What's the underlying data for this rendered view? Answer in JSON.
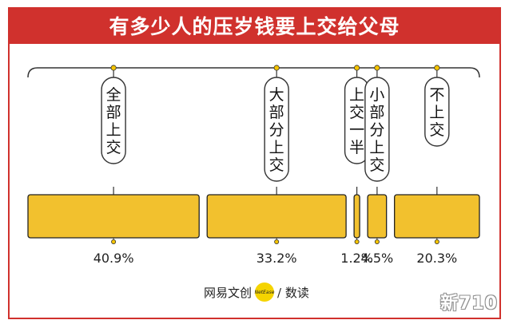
{
  "chart_data": {
    "type": "bar",
    "title": "有多少人的压岁钱要上交给父母",
    "categories": [
      "全部上交",
      "大部分上交",
      "上交一半",
      "小部分上交",
      "不上交"
    ],
    "values": [
      40.9,
      33.2,
      1.2,
      4.5,
      20.3
    ],
    "value_labels": [
      "40.9%",
      "33.2%",
      "1.2%",
      "4.5%",
      "20.3%"
    ],
    "unit": "%",
    "bar_color": "#f2c12e",
    "bar_border_color": "#222222",
    "accent_color": "#d0312d",
    "dot_color": "#f5c400"
  },
  "footer": {
    "brand": "网易文创",
    "badge": "NetEase",
    "section": "/ 数读"
  },
  "watermark": "新710"
}
